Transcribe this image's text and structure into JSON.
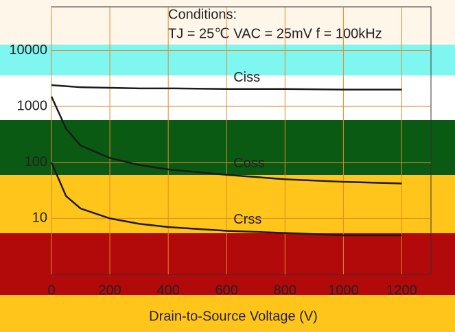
{
  "chart_data": {
    "type": "line",
    "annotations": [
      "Conditions:",
      "TJ = 25℃  VAC = 25mV  f = 100kHz"
    ],
    "x_label": "Drain-to-Source Voltage (V)",
    "x": [
      0,
      50,
      100,
      200,
      300,
      400,
      600,
      800,
      1000,
      1200
    ],
    "series": [
      {
        "name": "Ciss",
        "color": "#1a1a1a",
        "values": [
          2400,
          2300,
          2200,
          2150,
          2100,
          2100,
          2050,
          2050,
          2000,
          2000
        ]
      },
      {
        "name": "Coss",
        "color": "#1a1a1a",
        "values": [
          1500,
          400,
          200,
          120,
          90,
          75,
          60,
          50,
          45,
          42
        ]
      },
      {
        "name": "Crss",
        "color": "#1a1a1a",
        "values": [
          100,
          25,
          15,
          10,
          8,
          7,
          6,
          5.5,
          5,
          5
        ]
      }
    ],
    "xlim": [
      0,
      1300
    ],
    "xticks": [
      0,
      200,
      400,
      600,
      800,
      1000,
      1200
    ],
    "ylim": [
      1,
      60000
    ],
    "yticks": [
      10,
      100,
      1000,
      10000
    ],
    "log_y": true,
    "grid": true
  }
}
